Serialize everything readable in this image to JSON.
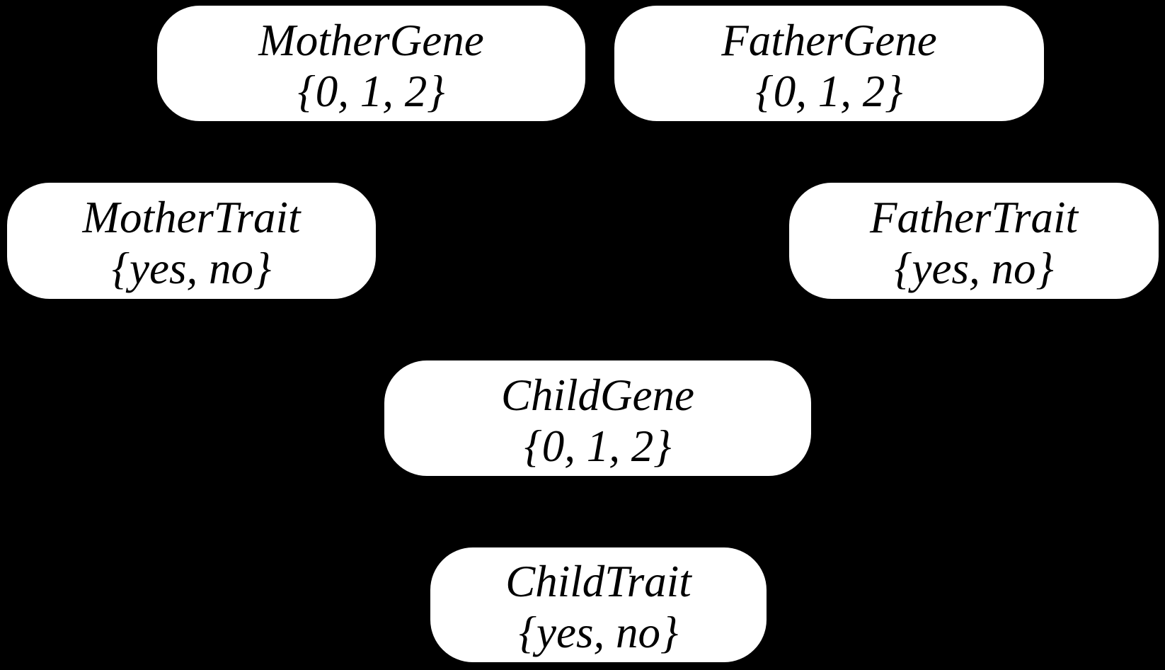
{
  "diagram": {
    "type": "bayesian-network",
    "colors": {
      "background": "#000000",
      "node_fill": "#ffffff",
      "node_text": "#000000"
    },
    "nodes": [
      {
        "label": "MotherGene",
        "domain": "{0, 1, 2}"
      },
      {
        "label": "FatherGene",
        "domain": "{0, 1, 2}"
      },
      {
        "label": "MotherTrait",
        "domain": "{yes, no}"
      },
      {
        "label": "FatherTrait",
        "domain": "{yes, no}"
      },
      {
        "label": "ChildGene",
        "domain": "{0, 1, 2}"
      },
      {
        "label": "ChildTrait",
        "domain": "{yes, no}"
      }
    ]
  }
}
